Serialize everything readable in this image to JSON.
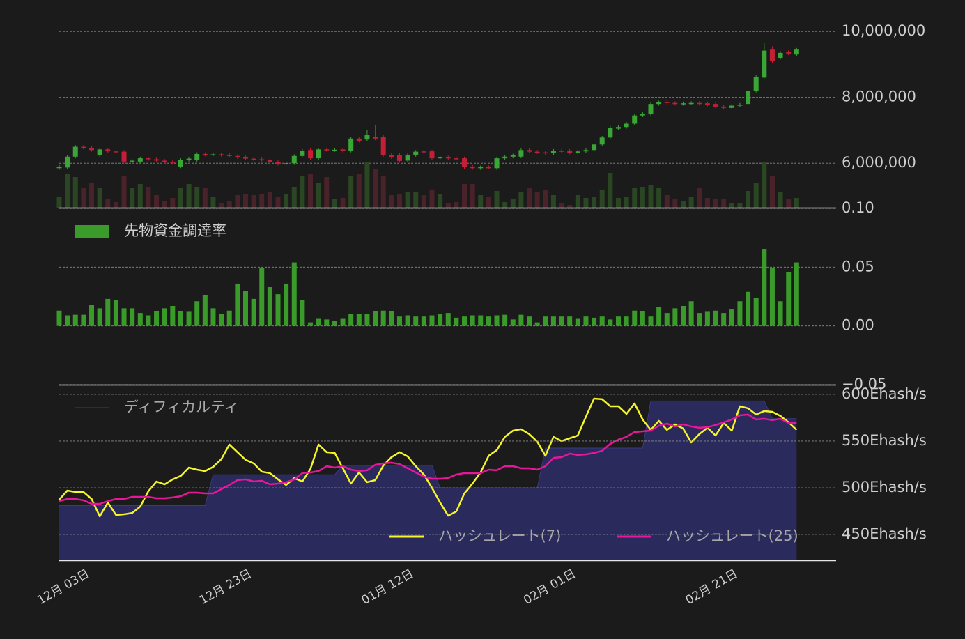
{
  "chart_data": [
    {
      "type": "candlestick",
      "up_color": "#3aa635",
      "down_color": "#c41f36",
      "volume_up_color": "#2a4623",
      "volume_down_color": "#4a2229",
      "grid": true,
      "ylim": [
        4650000,
        10300000
      ],
      "yticks": [
        {
          "value": 10000000,
          "label": "10,000,000"
        },
        {
          "value": 8000000,
          "label": "8,000,000"
        },
        {
          "value": 6000000,
          "label": "6,000,000"
        }
      ],
      "open": [
        5850000,
        5870000,
        6200000,
        6500000,
        6470000,
        6250000,
        6420000,
        6360000,
        6350000,
        6050000,
        6050000,
        6150000,
        6120000,
        6080000,
        6040000,
        5900000,
        6100000,
        6100000,
        6280000,
        6260000,
        6270000,
        6250000,
        6220000,
        6180000,
        6140000,
        6120000,
        6100000,
        6040000,
        5980000,
        6000000,
        6220000,
        6400000,
        6150000,
        6420000,
        6400000,
        6420000,
        6380000,
        6750000,
        6720000,
        6800000,
        6800000,
        6250000,
        6250000,
        6080000,
        6250000,
        6360000,
        6360000,
        6150000,
        6180000,
        6150000,
        6150000,
        5900000,
        5850000,
        5880000,
        5850000,
        6150000,
        6200000,
        6200000,
        6400000,
        6350000,
        6330000,
        6300000,
        6380000,
        6380000,
        6320000,
        6360000,
        6400000,
        6570000,
        6780000,
        7050000,
        7100000,
        7200000,
        7450000,
        7500000,
        7800000,
        7860000,
        7830000,
        7800000,
        7820000,
        7830000,
        7820000,
        7800000,
        7720000,
        7680000,
        7750000,
        7800000,
        8200000,
        8600000,
        9450000,
        9200000,
        9380000,
        9300000
      ],
      "high": [
        5950000,
        6250000,
        6550000,
        6550000,
        6520000,
        6470000,
        6470000,
        6410000,
        6400000,
        6130000,
        6200000,
        6200000,
        6170000,
        6130000,
        6090000,
        6150000,
        6190000,
        6330000,
        6330000,
        6320000,
        6320000,
        6300000,
        6270000,
        6230000,
        6190000,
        6170000,
        6150000,
        6090000,
        6050000,
        6270000,
        6430000,
        6450000,
        6470000,
        6470000,
        6460000,
        6470000,
        6800000,
        6800000,
        7000000,
        7150000,
        6850000,
        6300000,
        6300000,
        6300000,
        6400000,
        6410000,
        6410000,
        6230000,
        6230000,
        6200000,
        6200000,
        5950000,
        5930000,
        5930000,
        6200000,
        6250000,
        6290000,
        6450000,
        6450000,
        6400000,
        6380000,
        6430000,
        6430000,
        6430000,
        6410000,
        6450000,
        6620000,
        6830000,
        7130000,
        7150000,
        7250000,
        7500000,
        7550000,
        7850000,
        7900000,
        7910000,
        7880000,
        7870000,
        7880000,
        7880000,
        7870000,
        7850000,
        7770000,
        7800000,
        7830000,
        8250000,
        8670000,
        9650000,
        9550000,
        9400000,
        9430000,
        9500000
      ],
      "low": [
        5800000,
        5820000,
        6150000,
        6420000,
        6350000,
        6200000,
        6310000,
        6300000,
        6000000,
        6000000,
        6000000,
        6070000,
        6030000,
        5990000,
        5960000,
        5850000,
        6050000,
        6050000,
        6210000,
        6210000,
        6200000,
        6170000,
        6130000,
        6090000,
        6070000,
        6050000,
        5990000,
        5930000,
        5930000,
        5950000,
        6170000,
        6100000,
        6100000,
        6350000,
        6350000,
        6330000,
        6330000,
        6630000,
        6670000,
        6700000,
        6200000,
        6130000,
        6020000,
        6030000,
        6200000,
        6280000,
        6100000,
        6100000,
        6100000,
        6090000,
        5830000,
        5800000,
        5800000,
        5820000,
        5800000,
        6100000,
        6150000,
        6150000,
        6300000,
        6280000,
        6250000,
        6250000,
        6320000,
        6270000,
        6270000,
        6310000,
        6350000,
        6520000,
        6730000,
        7000000,
        7050000,
        7150000,
        7400000,
        7450000,
        7750000,
        7780000,
        7750000,
        7750000,
        7770000,
        7750000,
        7730000,
        7670000,
        7630000,
        7630000,
        7700000,
        7750000,
        8150000,
        8550000,
        9050000,
        9150000,
        9280000,
        9250000
      ],
      "close": [
        5900000,
        6200000,
        6500000,
        6470000,
        6400000,
        6420000,
        6360000,
        6350000,
        6050000,
        6080000,
        6150000,
        6120000,
        6080000,
        6040000,
        6010000,
        6100000,
        6140000,
        6280000,
        6260000,
        6270000,
        6250000,
        6220000,
        6180000,
        6140000,
        6120000,
        6100000,
        6040000,
        5980000,
        6000000,
        6220000,
        6380000,
        6150000,
        6420000,
        6400000,
        6410000,
        6380000,
        6750000,
        6680000,
        6850000,
        6750000,
        6250000,
        6180000,
        6070000,
        6250000,
        6350000,
        6330000,
        6150000,
        6180000,
        6150000,
        6140000,
        5880000,
        5850000,
        5880000,
        5870000,
        6150000,
        6200000,
        6240000,
        6400000,
        6350000,
        6330000,
        6300000,
        6380000,
        6370000,
        6320000,
        6360000,
        6400000,
        6570000,
        6780000,
        7080000,
        7100000,
        7200000,
        7450000,
        7500000,
        7800000,
        7850000,
        7830000,
        7800000,
        7820000,
        7830000,
        7800000,
        7780000,
        7720000,
        7680000,
        7750000,
        7780000,
        8200000,
        8620000,
        9420000,
        9100000,
        9350000,
        9330000,
        9450000
      ],
      "volume": [
        16,
        48,
        44,
        28,
        36,
        28,
        12,
        8,
        46,
        28,
        34,
        30,
        18,
        10,
        14,
        28,
        34,
        30,
        28,
        16,
        6,
        10,
        18,
        20,
        18,
        20,
        22,
        16,
        20,
        30,
        46,
        48,
        36,
        44,
        12,
        14,
        46,
        48,
        65,
        56,
        46,
        18,
        20,
        22,
        22,
        18,
        26,
        20,
        6,
        8,
        34,
        34,
        18,
        16,
        24,
        8,
        12,
        22,
        28,
        22,
        26,
        18,
        6,
        4,
        18,
        14,
        16,
        26,
        50,
        14,
        16,
        28,
        30,
        32,
        28,
        18,
        12,
        10,
        16,
        28,
        14,
        12,
        12,
        6,
        6,
        24,
        36,
        66,
        46,
        22,
        12,
        14
      ]
    },
    {
      "type": "bar",
      "grid": true,
      "ylim": [
        -0.05,
        0.1
      ],
      "yticks": [
        {
          "value": 0.1,
          "label": "0.10"
        },
        {
          "value": 0.05,
          "label": "0.05"
        },
        {
          "value": 0,
          "label": "0.00"
        },
        {
          "value": -0.05,
          "label": "−0.05"
        }
      ],
      "series": [
        {
          "name": "先物資金調達率",
          "color": "#3a9a2a",
          "values": [
            0.013,
            0.009,
            0.0095,
            0.0095,
            0.018,
            0.015,
            0.023,
            0.022,
            0.015,
            0.015,
            0.011,
            0.009,
            0.0125,
            0.015,
            0.017,
            0.0125,
            0.012,
            0.021,
            0.026,
            0.015,
            0.01,
            0.013,
            0.036,
            0.03,
            0.023,
            0.049,
            0.033,
            0.027,
            0.036,
            0.054,
            0.022,
            0.003,
            0.006,
            0.0055,
            0.004,
            0.006,
            0.01,
            0.01,
            0.01,
            0.0125,
            0.013,
            0.0125,
            0.008,
            0.009,
            0.008,
            0.008,
            0.009,
            0.01,
            0.011,
            0.007,
            0.008,
            0.009,
            0.009,
            0.008,
            0.009,
            0.0095,
            0.0055,
            0.0095,
            0.008,
            0.003,
            0.008,
            0.008,
            0.008,
            0.008,
            0.006,
            0.008,
            0.007,
            0.008,
            0.0055,
            0.008,
            0.008,
            0.013,
            0.0125,
            0.008,
            0.016,
            0.011,
            0.015,
            0.017,
            0.021,
            0.011,
            0.012,
            0.013,
            0.011,
            0.014,
            0.021,
            0.029,
            0.024,
            0.065,
            0.049,
            0.021,
            0.046,
            0.054
          ]
        }
      ]
    },
    {
      "type": "line",
      "grid": true,
      "ylim": [
        422.4,
        610.4
      ],
      "yticks": [
        {
          "value": 600,
          "label": "600Ehash/s"
        },
        {
          "value": 550,
          "label": "550Ehash/s"
        },
        {
          "value": 500,
          "label": "500Ehash/s"
        },
        {
          "value": 450,
          "label": "450Ehash/s"
        }
      ],
      "categories": [
        "12月 03日",
        null,
        null,
        null,
        null,
        null,
        null,
        null,
        null,
        null,
        null,
        null,
        null,
        null,
        null,
        null,
        null,
        null,
        null,
        null,
        "12月 23日",
        null,
        null,
        null,
        null,
        null,
        null,
        null,
        null,
        null,
        null,
        null,
        null,
        null,
        null,
        null,
        null,
        null,
        null,
        null,
        "01月 12日",
        null,
        null,
        null,
        null,
        null,
        null,
        null,
        null,
        null,
        null,
        null,
        null,
        null,
        null,
        null,
        null,
        null,
        null,
        null,
        "02月 01日",
        null,
        null,
        null,
        null,
        null,
        null,
        null,
        null,
        null,
        null,
        null,
        null,
        null,
        null,
        null,
        null,
        null,
        null,
        null,
        "02月 21日",
        null,
        null,
        null,
        null,
        null,
        null,
        null,
        null,
        null,
        null,
        null
      ],
      "series": [
        {
          "name": "ディフィカルティ",
          "color": "#2a2a5c",
          "area": true,
          "values": [
            481,
            481,
            481,
            481,
            481,
            481,
            481,
            481,
            481,
            481,
            481,
            481,
            481,
            481,
            481,
            481,
            481,
            481,
            481,
            514,
            514,
            514,
            514,
            514,
            514,
            514,
            514,
            514,
            514,
            514,
            514,
            514,
            514,
            514,
            514,
            524,
            524,
            524,
            524,
            524,
            524,
            524,
            524,
            524,
            524,
            524,
            524,
            500,
            500,
            500,
            500,
            500,
            500,
            500,
            500,
            500,
            500,
            500,
            500,
            500,
            542.5,
            542.5,
            542.5,
            542.5,
            542.5,
            542.5,
            542.5,
            542.5,
            542.5,
            542.5,
            542.5,
            542.5,
            542.5,
            593,
            593,
            593,
            593,
            593,
            593,
            593,
            593,
            593,
            593,
            593,
            593,
            593,
            593,
            593,
            574,
            574,
            574,
            574
          ]
        },
        {
          "name": "ハッシュレート(7)",
          "color": "#f5f52a",
          "values": [
            487.3,
            497,
            495.5,
            495.5,
            488,
            469.4,
            484.3,
            470.9,
            471.6,
            473,
            479.9,
            496.3,
            506.7,
            503.7,
            509,
            512.7,
            521.6,
            519.4,
            517.9,
            522.4,
            530.6,
            546.3,
            538.1,
            529.9,
            526.1,
            517.2,
            515.7,
            509,
            503,
            510.4,
            506.7,
            520.1,
            546.3,
            538.1,
            537.3,
            520.9,
            504.5,
            516.4,
            506,
            508.2,
            523.9,
            532.8,
            538.1,
            533.6,
            523.1,
            514.2,
            500,
            484.3,
            470.1,
            474.6,
            494,
            504.5,
            516.4,
            534.3,
            540.3,
            554.5,
            561.2,
            562.7,
            557.5,
            549.3,
            534.3,
            554.5,
            550,
            553,
            556,
            576.1,
            595.5,
            594.8,
            587.3,
            587.3,
            579.1,
            590.3,
            573.1,
            562,
            571.6,
            562,
            567.9,
            563.4,
            548.5,
            557.5,
            564.2,
            556,
            569.4,
            561.2,
            587.3,
            585.1,
            578.4,
            582.1,
            581.3,
            576.9,
            570.1,
            562
          ]
        },
        {
          "name": "ハッシュレート(25)",
          "color": "#e8169a",
          "values": [
            485.8,
            488,
            488,
            486.6,
            482.8,
            482.8,
            485.8,
            488,
            488,
            490.3,
            490.3,
            490.3,
            488.8,
            488.8,
            489.6,
            491,
            494.8,
            494.8,
            494,
            494,
            498.5,
            503,
            508.2,
            509,
            506.7,
            507.5,
            503.7,
            504.5,
            506,
            509,
            515.7,
            516.4,
            517.9,
            523.1,
            521.6,
            523.1,
            519.4,
            517.9,
            518.7,
            524.6,
            526.1,
            526.9,
            525.4,
            520.9,
            516.4,
            511.9,
            509.7,
            509.7,
            510.4,
            514.2,
            515.7,
            515.7,
            515.7,
            519.4,
            518.7,
            523.1,
            523.1,
            520.9,
            520.9,
            519.4,
            523.1,
            532.1,
            532.8,
            536.6,
            535.1,
            535.8,
            537.3,
            539.6,
            547,
            551.5,
            554.5,
            559.7,
            560.4,
            561.2,
            566.4,
            568.7,
            565.7,
            567.9,
            565.7,
            564.2,
            564.9,
            567.2,
            570.1,
            573.1,
            577.6,
            578.4,
            573.1,
            573.9,
            572.4,
            573.9,
            569.4,
            569.4
          ]
        }
      ]
    }
  ]
}
